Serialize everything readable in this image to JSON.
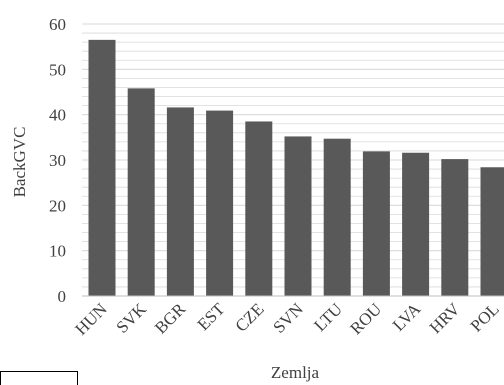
{
  "chart_data": {
    "type": "bar",
    "title": "",
    "xlabel": "Zemlja",
    "ylabel": "BackGVC",
    "categories": [
      "HUN",
      "SVK",
      "BGR",
      "EST",
      "CZE",
      "SVN",
      "LTU",
      "ROU",
      "LVA",
      "HRV",
      "POL"
    ],
    "values": [
      56.5,
      45.8,
      41.6,
      40.9,
      38.5,
      35.2,
      34.7,
      31.9,
      31.6,
      30.2,
      28.4
    ],
    "ylim": [
      0,
      60
    ],
    "yticks": [
      "0",
      "10",
      "20",
      "30",
      "40",
      "50",
      "60"
    ],
    "grid": true,
    "bar_color": "#595959",
    "grid_color": "#d9d9d9"
  }
}
